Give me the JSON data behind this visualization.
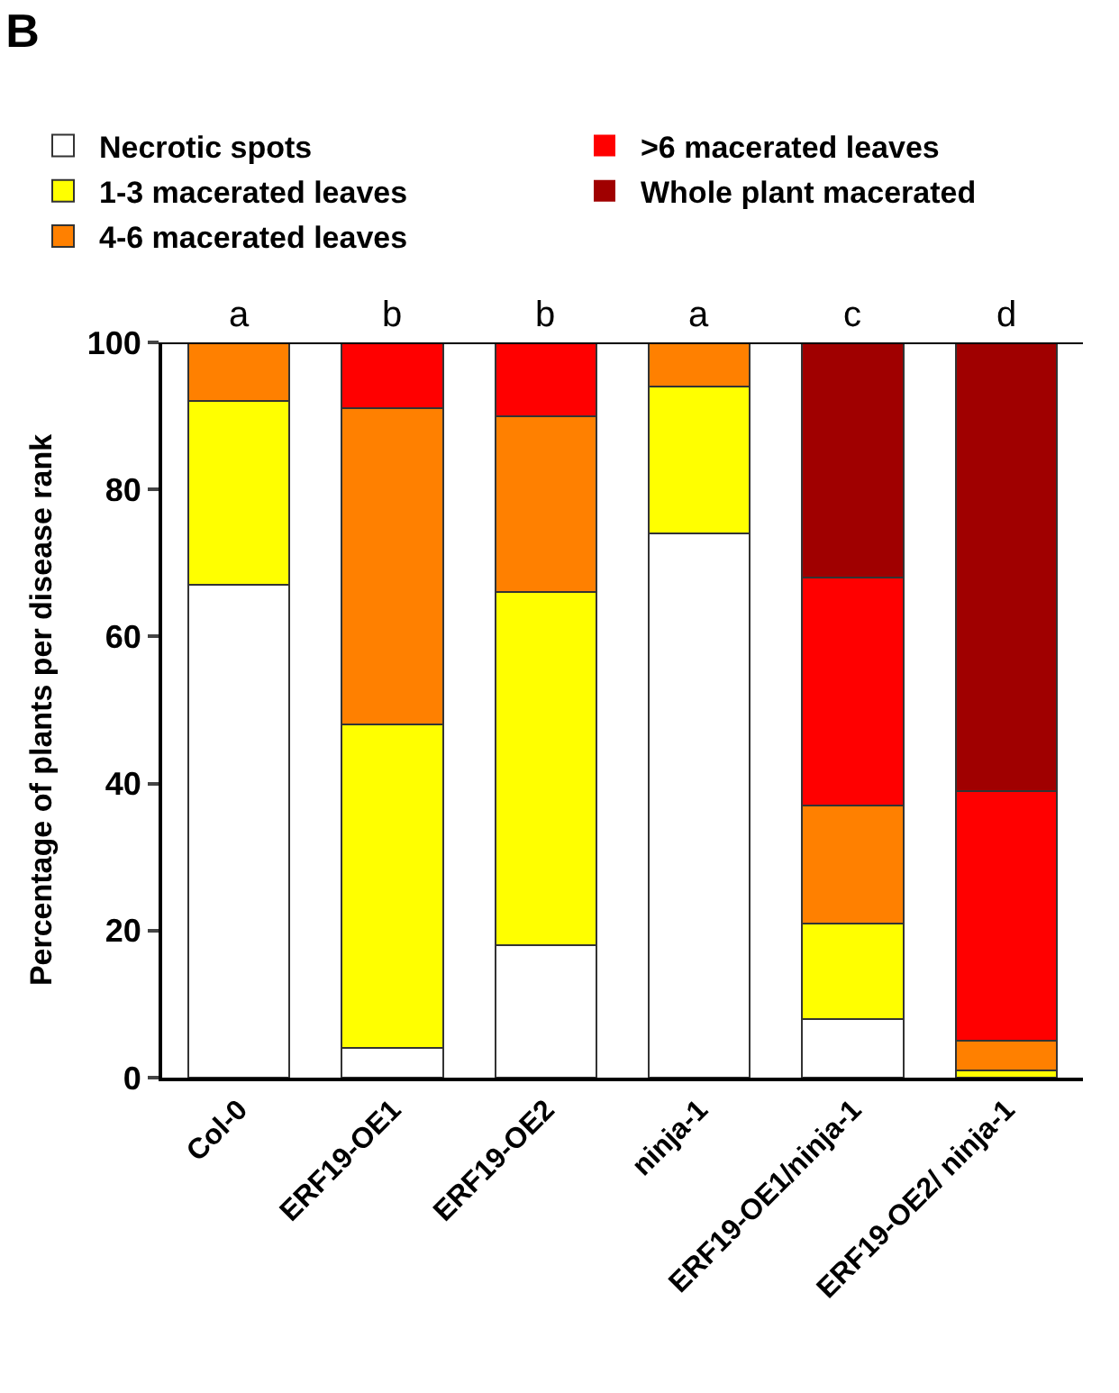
{
  "chart_data": {
    "type": "bar",
    "title": "B",
    "ylabel": "Percentage of plants per disease rank",
    "categories": [
      "Col-0",
      "ERF19-OE1",
      "ERF19-OE2",
      "ninja-1",
      "ERF19-OE1/ninja-1",
      "ERF19-OE2/ ninja-1"
    ],
    "stacked": true,
    "series": [
      {
        "name": "Necrotic spots",
        "color": "#ffffff",
        "values": [
          67,
          4,
          18,
          74,
          8,
          0
        ]
      },
      {
        "name": "1-3 macerated leaves",
        "color": "#ffff00",
        "values": [
          25,
          44,
          48,
          20,
          13,
          1
        ]
      },
      {
        "name": "4-6 macerated leaves",
        "color": "#ff8000",
        "values": [
          8,
          43,
          24,
          6,
          16,
          4
        ]
      },
      {
        "name": ">6 macerated leaves",
        "color": "#ff0000",
        "values": [
          0,
          9,
          10,
          0,
          31,
          34
        ]
      },
      {
        "name": "Whole plant macerated",
        "color": "#a00000",
        "values": [
          0,
          0,
          0,
          0,
          32,
          61
        ]
      }
    ],
    "ylim": [
      0,
      100
    ],
    "yticks": [
      0,
      20,
      40,
      60,
      80,
      100
    ],
    "legend": "top",
    "annotations": [
      {
        "text": "a",
        "x": "Col-0",
        "y": 100
      },
      {
        "text": "b",
        "x": "ERF19-OE1",
        "y": 100
      },
      {
        "text": "b",
        "x": "ERF19-OE2",
        "y": 100
      },
      {
        "text": "a",
        "x": "ninja-1",
        "y": 100
      },
      {
        "text": "c",
        "x": "ERF19-OE1/ninja-1",
        "y": 100
      },
      {
        "text": "d",
        "x": "ERF19-OE2/ ninja-1",
        "y": 100
      }
    ]
  }
}
